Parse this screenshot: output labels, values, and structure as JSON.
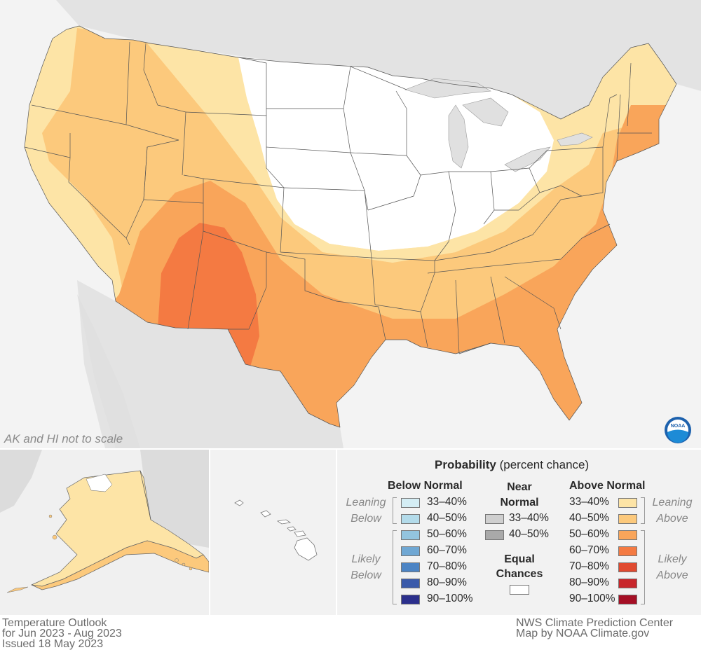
{
  "map_note": "AK and HI not to scale",
  "legend": {
    "title_bold": "Probability",
    "title_rest": " (percent chance)",
    "below_normal": {
      "header": "Below Normal",
      "leaning_label": [
        "Leaning",
        "Below"
      ],
      "likely_label": [
        "Likely",
        "Below"
      ],
      "items": [
        {
          "label": "33–40%",
          "color": "#d4edf4"
        },
        {
          "label": "40–50%",
          "color": "#b3dbea"
        },
        {
          "label": "50–60%",
          "color": "#93c4de"
        },
        {
          "label": "60–70%",
          "color": "#6fa7d3"
        },
        {
          "label": "70–80%",
          "color": "#4c84c4"
        },
        {
          "label": "80–90%",
          "color": "#3a5aaa"
        },
        {
          "label": "90–100%",
          "color": "#2b2f8c"
        }
      ]
    },
    "near_normal": {
      "header": [
        "Near",
        "Normal"
      ],
      "items": [
        {
          "label": "33–40%",
          "color": "#cfcfcf"
        },
        {
          "label": "40–50%",
          "color": "#a9a9a9"
        }
      ]
    },
    "equal_chances": {
      "header": [
        "Equal",
        "Chances"
      ],
      "color": "#ffffff"
    },
    "above_normal": {
      "header": "Above Normal",
      "leaning_label": [
        "Leaning",
        "Above"
      ],
      "likely_label": [
        "Likely",
        "Above"
      ],
      "items": [
        {
          "label": "33–40%",
          "color": "#fde4a6"
        },
        {
          "label": "40–50%",
          "color": "#fcc97c"
        },
        {
          "label": "50–60%",
          "color": "#f9a55a"
        },
        {
          "label": "60–70%",
          "color": "#f47a42"
        },
        {
          "label": "70–80%",
          "color": "#e04a30"
        },
        {
          "label": "80–90%",
          "color": "#c8262b"
        },
        {
          "label": "90–100%",
          "color": "#a50f25"
        }
      ]
    }
  },
  "footer_left": [
    "Temperature Outlook",
    "for Jun 2023 - Aug 2023",
    "Issued 18 May 2023"
  ],
  "footer_right": [
    "NWS Climate Prediction Center",
    "Map by NOAA Climate.gov"
  ],
  "logo_text": "NOAA"
}
